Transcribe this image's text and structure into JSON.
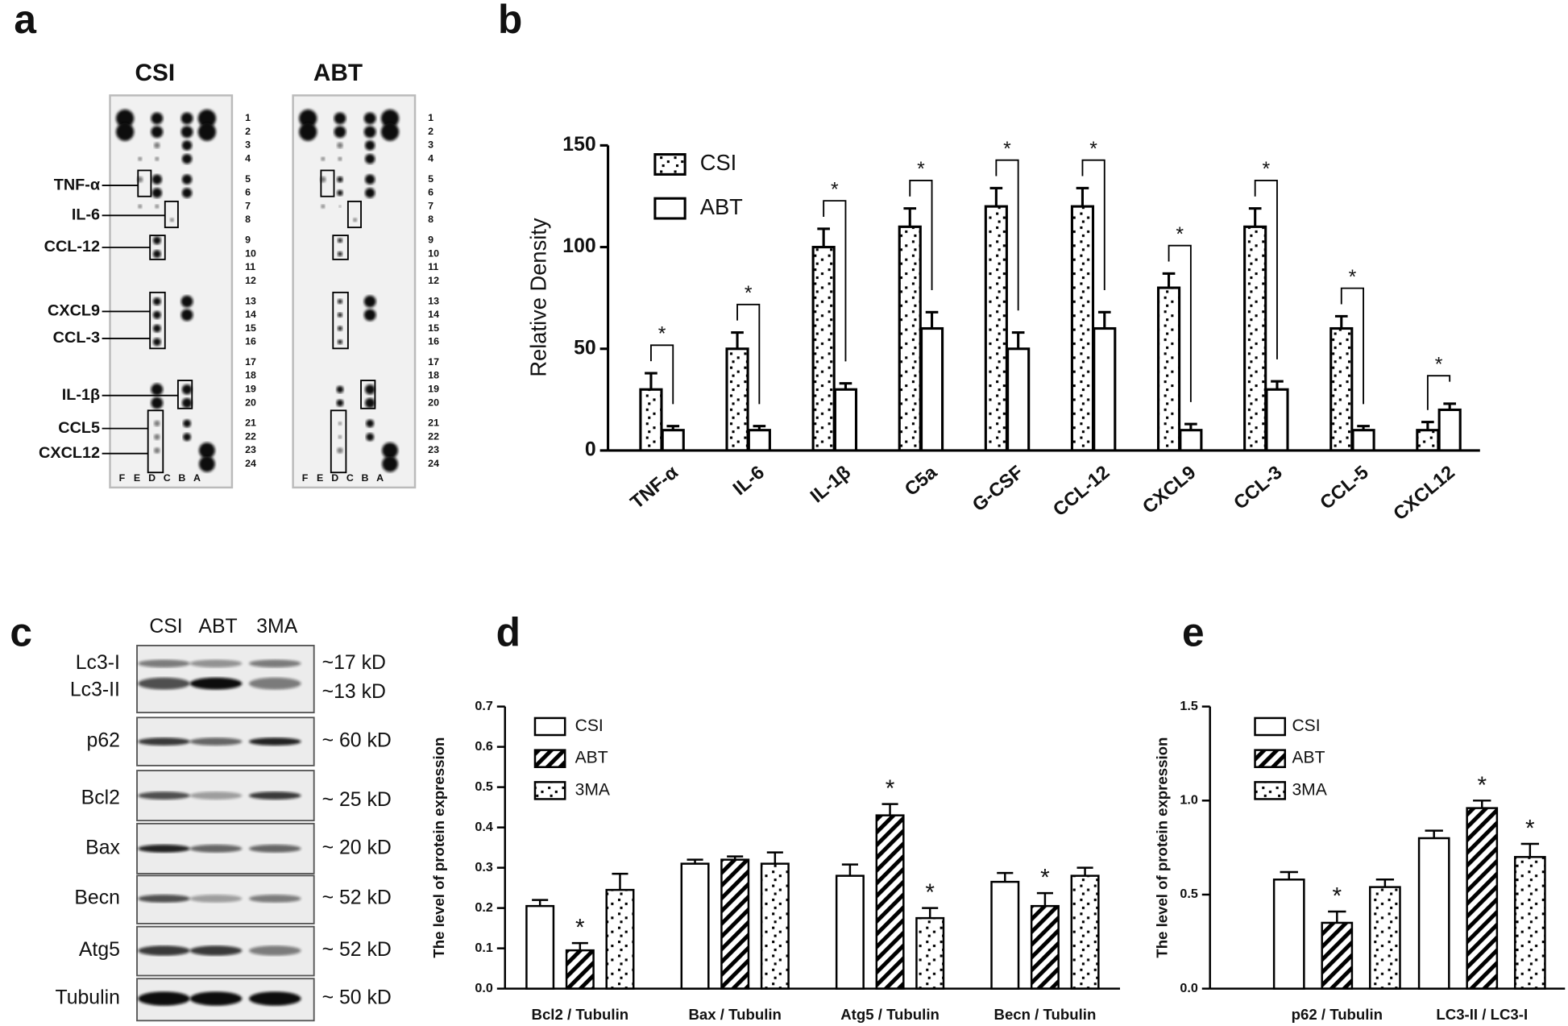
{
  "panel_labels": [
    "a",
    "b",
    "c",
    "d",
    "e"
  ],
  "dot_blot": {
    "groups": [
      "CSI",
      "ABT"
    ],
    "cytokines": [
      "TNF-α",
      "IL-6",
      "CCL-12",
      "CXCL9",
      "CCL-3",
      "IL-1β",
      "CCL5",
      "CXCL12"
    ],
    "rows": [
      "1",
      "2",
      "3",
      "4",
      "5",
      "6",
      "7",
      "8",
      "9",
      "10",
      "11",
      "12",
      "13",
      "14",
      "15",
      "16",
      "17",
      "18",
      "19",
      "20",
      "21",
      "22",
      "23",
      "24"
    ],
    "columns": [
      "F",
      "E",
      "D",
      "C",
      "B",
      "A"
    ]
  },
  "western_blot": {
    "groups": [
      "CSI",
      "ABT",
      "3MA"
    ],
    "proteins": [
      "Lc3-I",
      "Lc3-II",
      "p62",
      "Bcl2",
      "Bax",
      "Becn",
      "Atg5",
      "Tubulin"
    ],
    "sizes": [
      "~17 kD",
      "~13 kD",
      "~ 60 kD",
      "~ 25 kD",
      "~ 20 kD",
      "~ 52 kD",
      "~ 52 kD",
      "~ 50 kD"
    ]
  },
  "chart_data": [
    {
      "type": "bar",
      "y_label": "Relative Density",
      "categories": [
        "TNF-α",
        "IL-6",
        "IL-1β",
        "C5a",
        "G-CSF",
        "CCL-12",
        "CXCL9",
        "CCL-3",
        "CCL-5",
        "CXCL12"
      ],
      "series": [
        {
          "name": "CSI",
          "pattern": "dots",
          "color": "#000000",
          "values": [
            30,
            50,
            100,
            110,
            120,
            120,
            80,
            110,
            60,
            10
          ],
          "errors": [
            8,
            8,
            9,
            9,
            9,
            9,
            7,
            9,
            6,
            4
          ]
        },
        {
          "name": "ABT",
          "pattern": "none",
          "color": "#000000",
          "values": [
            10,
            10,
            30,
            60,
            50,
            60,
            10,
            30,
            10,
            20
          ],
          "errors": [
            2,
            2,
            3,
            8,
            8,
            8,
            3,
            4,
            2,
            3
          ]
        }
      ],
      "significance": [
        "*",
        "*",
        "*",
        "*",
        "*",
        "*",
        "*",
        "*",
        "*",
        "*"
      ],
      "ylim": [
        0,
        150
      ],
      "yticks": [
        0,
        50,
        100,
        150
      ],
      "legend": "upper left"
    },
    {
      "type": "bar",
      "y_label": "The level of protein expression",
      "categories": [
        "Bcl2 / Tubulin",
        "Bax / Tubulin",
        "Atg5 / Tubulin",
        "Becn / Tubulin"
      ],
      "series": [
        {
          "name": "CSI",
          "pattern": "none",
          "color": "#000000",
          "values": [
            0.205,
            0.31,
            0.28,
            0.265
          ],
          "errors": [
            0.015,
            0.01,
            0.028,
            0.022
          ],
          "stars": [
            null,
            null,
            null,
            null
          ]
        },
        {
          "name": "ABT",
          "pattern": "hatch",
          "color": "#000000",
          "values": [
            0.095,
            0.32,
            0.43,
            0.205
          ],
          "errors": [
            0.018,
            0.008,
            0.028,
            0.032
          ],
          "stars": [
            "*",
            null,
            "*",
            "*"
          ]
        },
        {
          "name": "3MA",
          "pattern": "dots",
          "color": "#000000",
          "values": [
            0.245,
            0.31,
            0.175,
            0.28
          ],
          "errors": [
            0.04,
            0.028,
            0.025,
            0.02
          ],
          "stars": [
            null,
            null,
            "*",
            null
          ]
        }
      ],
      "ylim": [
        0,
        0.7
      ],
      "yticks": [
        {
          "value": 0,
          "label": "0.0"
        },
        0.1,
        0.2,
        0.3,
        0.4,
        0.5,
        0.6,
        0.7
      ],
      "legend": "upper left"
    },
    {
      "type": "bar",
      "y_label": "The level of protein expression",
      "categories": [
        "p62 / Tubulin",
        "LC3-II / LC3-I"
      ],
      "series": [
        {
          "name": "CSI",
          "pattern": "none",
          "color": "#000000",
          "values": [
            0.58,
            0.8
          ],
          "errors": [
            0.04,
            0.04
          ],
          "stars": [
            null,
            null
          ]
        },
        {
          "name": "ABT",
          "pattern": "hatch",
          "color": "#000000",
          "values": [
            0.35,
            0.96
          ],
          "errors": [
            0.06,
            0.04
          ],
          "stars": [
            "*",
            "*"
          ]
        },
        {
          "name": "3MA",
          "pattern": "dots",
          "color": "#000000",
          "values": [
            0.54,
            0.7
          ],
          "errors": [
            0.04,
            0.07
          ],
          "stars": [
            null,
            "*"
          ]
        }
      ],
      "ylim": [
        0,
        1.5
      ],
      "yticks": [
        {
          "value": 0,
          "label": "0.0"
        },
        0.5,
        {
          "value": 1,
          "label": "1.0"
        },
        1.5
      ],
      "legend": "upper left"
    }
  ]
}
